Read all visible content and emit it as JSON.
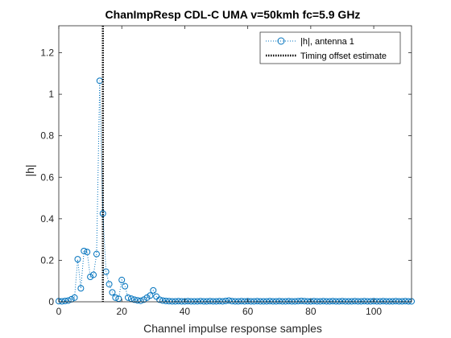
{
  "chart_data": {
    "type": "scatter",
    "title": "ChanImpResp CDL-C UMA v=50kmh fc=5.9 GHz",
    "xlabel": "Channel impulse response samples",
    "ylabel": "|h|",
    "xlim": [
      0,
      112
    ],
    "ylim": [
      0,
      1.33
    ],
    "xticks": [
      0,
      20,
      40,
      60,
      80,
      100
    ],
    "yticks": [
      0,
      0.2,
      0.4,
      0.6,
      0.8,
      1,
      1.2
    ],
    "xtick_labels": [
      "0",
      "20",
      "40",
      "60",
      "80",
      "100"
    ],
    "ytick_labels": [
      "0",
      "0.2",
      "0.4",
      "0.6",
      "0.8",
      "1",
      "1.2"
    ],
    "grid": false,
    "legend_position": "top-right",
    "series": [
      {
        "name": "|h|, antenna 1",
        "style": "dotted line with circle markers",
        "color": "#0072BD",
        "x": [
          0,
          1,
          2,
          3,
          4,
          5,
          6,
          7,
          8,
          9,
          10,
          11,
          12,
          13,
          14,
          15,
          16,
          17,
          18,
          19,
          20,
          21,
          22,
          23,
          24,
          25,
          26,
          27,
          28,
          29,
          30,
          31,
          32,
          33,
          34,
          35,
          36,
          37,
          38,
          39,
          40,
          41,
          42,
          43,
          44,
          45,
          46,
          47,
          48,
          49,
          50,
          51,
          52,
          53,
          54,
          55,
          56,
          57,
          58,
          59,
          60,
          61,
          62,
          63,
          64,
          65,
          66,
          67,
          68,
          69,
          70,
          71,
          72,
          73,
          74,
          75,
          76,
          77,
          78,
          79,
          80,
          81,
          82,
          83,
          84,
          85,
          86,
          87,
          88,
          89,
          90,
          91,
          92,
          93,
          94,
          95,
          96,
          97,
          98,
          99,
          100,
          101,
          102,
          103,
          104,
          105,
          106,
          107,
          108,
          109,
          110,
          111,
          112
        ],
        "y": [
          0.003,
          0.002,
          0.004,
          0.006,
          0.012,
          0.02,
          0.205,
          0.065,
          0.245,
          0.24,
          0.12,
          0.13,
          0.23,
          1.065,
          0.425,
          0.145,
          0.085,
          0.045,
          0.02,
          0.015,
          0.105,
          0.075,
          0.02,
          0.015,
          0.01,
          0.007,
          0.005,
          0.01,
          0.02,
          0.03,
          0.055,
          0.025,
          0.01,
          0.006,
          0.004,
          0.003,
          0.002,
          0.002,
          0.003,
          0.002,
          0.002,
          0.003,
          0.002,
          0.002,
          0.002,
          0.003,
          0.002,
          0.002,
          0.003,
          0.002,
          0.002,
          0.003,
          0.002,
          0.004,
          0.006,
          0.003,
          0.002,
          0.002,
          0.003,
          0.002,
          0.003,
          0.002,
          0.002,
          0.003,
          0.002,
          0.002,
          0.002,
          0.003,
          0.002,
          0.002,
          0.003,
          0.002,
          0.002,
          0.003,
          0.002,
          0.002,
          0.003,
          0.004,
          0.003,
          0.002,
          0.002,
          0.003,
          0.002,
          0.002,
          0.003,
          0.002,
          0.002,
          0.003,
          0.002,
          0.002,
          0.003,
          0.002,
          0.002,
          0.002,
          0.003,
          0.002,
          0.002,
          0.003,
          0.002,
          0.002,
          0.003,
          0.002,
          0.002,
          0.003,
          0.002,
          0.002,
          0.002,
          0.003,
          0.002,
          0.002,
          0.003,
          0.002,
          0.002
        ]
      },
      {
        "name": "Timing offset estimate",
        "style": "vertical dotted line",
        "color": "#000000",
        "x_value": 14
      }
    ]
  }
}
